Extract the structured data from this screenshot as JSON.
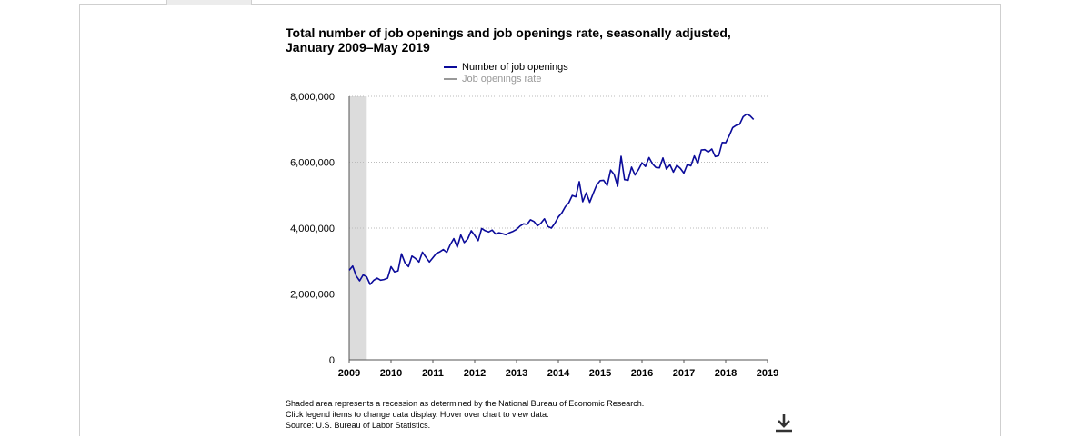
{
  "title": "Total number of job openings and job openings rate, seasonally adjusted, January 2009–May 2019",
  "legend": {
    "items": [
      {
        "label": "Number of job openings",
        "color": "#0b0b9a",
        "active": true
      },
      {
        "label": "Job openings rate",
        "color": "#999999",
        "active": false
      }
    ]
  },
  "footnote": {
    "line1": "Shaded area represents a recession as determined by the National Bureau of Economic Research.",
    "line2": "Click legend items to change data display. Hover over chart to view data.",
    "line3": "Source: U.S. Bureau of Labor Statistics."
  },
  "download_icon": "download-icon",
  "chart_data": {
    "type": "line",
    "x_ticks": [
      "2009",
      "2010",
      "2011",
      "2012",
      "2013",
      "2014",
      "2015",
      "2016",
      "2017",
      "2018",
      "2019"
    ],
    "y_ticks": [
      "0",
      "2,000,000",
      "4,000,000",
      "6,000,000",
      "8,000,000"
    ],
    "ylim": [
      0,
      8000000
    ],
    "xlim": [
      2009.0,
      2019.0
    ],
    "grid": "horizontal dotted",
    "recession": {
      "start": 2009.0,
      "end": 2009.42,
      "color": "#dcdcdc"
    },
    "series": [
      {
        "name": "Number of job openings",
        "color": "#0b0b9a",
        "start": "2009-01",
        "values": [
          2720000,
          2850000,
          2550000,
          2400000,
          2580000,
          2520000,
          2290000,
          2410000,
          2480000,
          2420000,
          2440000,
          2480000,
          2830000,
          2670000,
          2700000,
          3220000,
          2950000,
          2830000,
          3150000,
          3080000,
          2970000,
          3270000,
          3120000,
          2970000,
          3100000,
          3230000,
          3280000,
          3350000,
          3260000,
          3500000,
          3680000,
          3420000,
          3790000,
          3560000,
          3670000,
          3920000,
          3780000,
          3620000,
          3990000,
          3920000,
          3880000,
          3940000,
          3820000,
          3860000,
          3830000,
          3800000,
          3860000,
          3900000,
          3960000,
          4060000,
          4130000,
          4110000,
          4250000,
          4200000,
          4070000,
          4150000,
          4280000,
          4050000,
          4000000,
          4150000,
          4340000,
          4460000,
          4650000,
          4770000,
          4990000,
          4950000,
          5410000,
          4800000,
          5070000,
          4780000,
          5050000,
          5310000,
          5440000,
          5450000,
          5290000,
          5760000,
          5630000,
          5270000,
          6180000,
          5470000,
          5450000,
          5850000,
          5610000,
          5780000,
          5980000,
          5870000,
          6140000,
          5950000,
          5840000,
          5830000,
          6130000,
          5790000,
          5920000,
          5700000,
          5910000,
          5810000,
          5670000,
          5930000,
          5890000,
          6190000,
          5960000,
          6370000,
          6380000,
          6310000,
          6400000,
          6170000,
          6200000,
          6600000,
          6590000,
          6800000,
          7050000,
          7120000,
          7150000,
          7380000,
          7460000,
          7410000,
          7300000
        ]
      }
    ]
  }
}
